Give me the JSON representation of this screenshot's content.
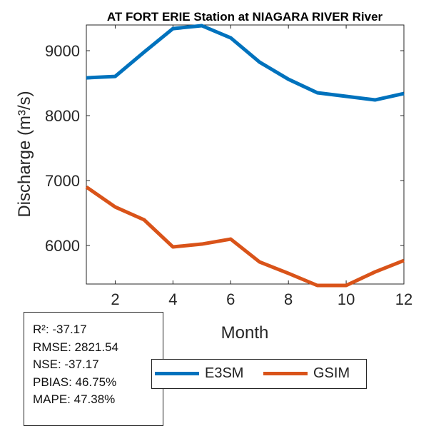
{
  "chart_data": {
    "type": "line",
    "title": "AT FORT ERIE  Station at  NIAGARA RIVER  River",
    "xlabel": "Month",
    "ylabel": "Discharge (m³/s)",
    "x": [
      1,
      2,
      3,
      4,
      5,
      6,
      7,
      8,
      9,
      10,
      11,
      12
    ],
    "xlim": [
      1,
      12
    ],
    "ylim": [
      5407,
      9396
    ],
    "xticks": [
      2,
      4,
      6,
      8,
      10,
      12
    ],
    "yticks": [
      6000,
      7000,
      8000,
      9000
    ],
    "grid": false,
    "legend_position": "bottom",
    "series": [
      {
        "name": "E3SM",
        "color": "#0072BD",
        "values": [
          8582,
          8604,
          8978,
          9340,
          9385,
          9198,
          8824,
          8560,
          8352,
          8297,
          8242,
          8341
        ]
      },
      {
        "name": "GSIM",
        "color": "#D95319",
        "values": [
          6901,
          6593,
          6396,
          5978,
          6022,
          6099,
          5747,
          5571,
          5385,
          5385,
          5593,
          5769
        ]
      }
    ]
  },
  "stats": [
    "R²: -37.17",
    "RMSE: 2821.54",
    "NSE: -37.17",
    "PBIAS: 46.75%",
    "MAPE: 47.38%"
  ]
}
